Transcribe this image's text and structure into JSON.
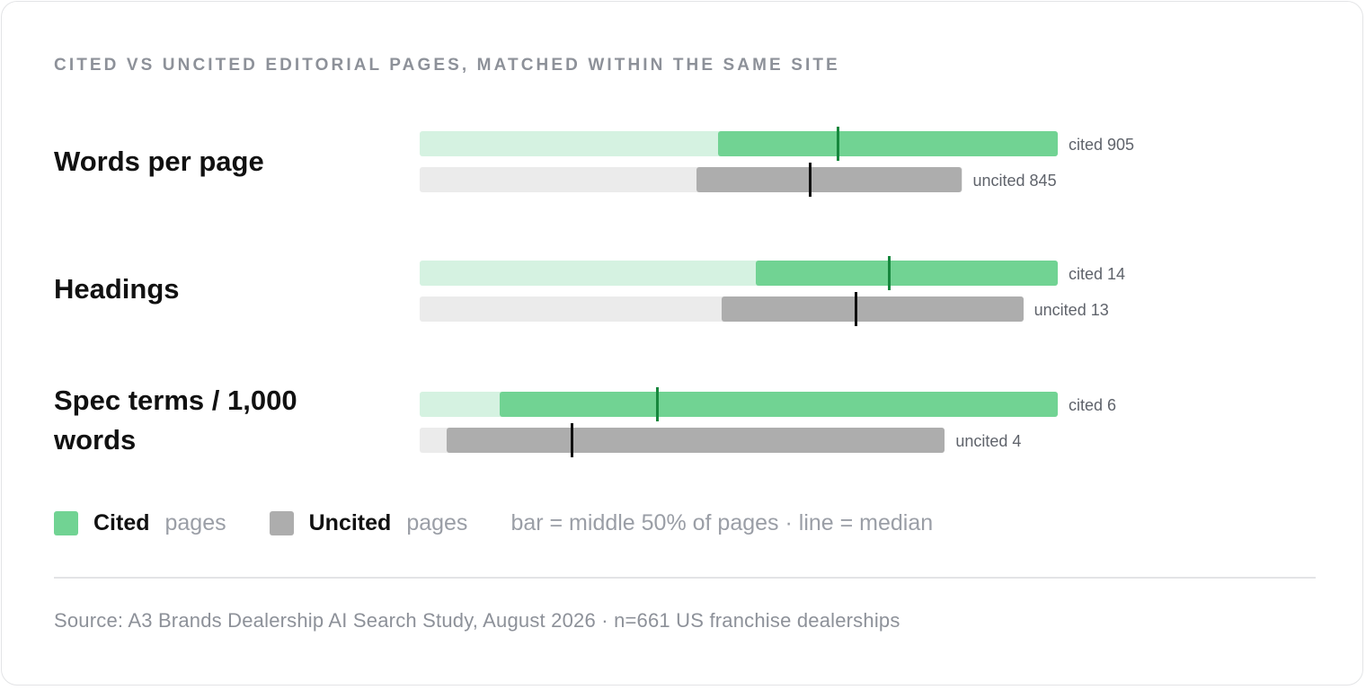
{
  "title": "CITED VS UNCITED EDITORIAL PAGES, MATCHED WITHIN THE SAME SITE",
  "legend": {
    "cited_label": "Cited",
    "cited_suffix": "pages",
    "uncited_label": "Uncited",
    "uncited_suffix": "pages",
    "note": "bar = middle 50% of pages · line = median"
  },
  "source": "Source: A3 Brands Dealership AI Search Study, August 2026 · n=661 US franchise dealerships",
  "colors": {
    "cited_track": "#d5f2e1",
    "cited_bar": "#71d393",
    "cited_median": "#16873d",
    "uncited_track": "#ebebeb",
    "uncited_bar": "#adadad",
    "uncited_median": "#111111"
  },
  "chart_data": {
    "type": "bar",
    "title": "CITED VS UNCITED EDITORIAL PAGES, MATCHED WITHIN THE SAME SITE",
    "description_of_encoding": "Each metric scaled to its own 0–max track; bar spans interquartile range, line marks median",
    "metrics": [
      {
        "name": "Words per page",
        "cited": {
          "label": "cited 905",
          "median": 905,
          "q1_frac": 0.467,
          "q3_frac": 1.0,
          "median_frac": 0.655
        },
        "uncited": {
          "label": "uncited 845",
          "median": 845,
          "q1_frac": 0.434,
          "q3_frac": 0.85,
          "median_frac": 0.612
        }
      },
      {
        "name": "Headings",
        "cited": {
          "label": "cited 14",
          "median": 14,
          "q1_frac": 0.527,
          "q3_frac": 1.0,
          "median_frac": 0.736
        },
        "uncited": {
          "label": "uncited 13",
          "median": 13,
          "q1_frac": 0.473,
          "q3_frac": 0.946,
          "median_frac": 0.684
        }
      },
      {
        "name": "Spec terms / 1,000 words",
        "cited": {
          "label": "cited 6",
          "median": 6,
          "q1_frac": 0.125,
          "q3_frac": 1.0,
          "median_frac": 0.373
        },
        "uncited": {
          "label": "uncited 4",
          "median": 4,
          "q1_frac": 0.042,
          "q3_frac": 0.823,
          "median_frac": 0.239
        }
      }
    ]
  }
}
